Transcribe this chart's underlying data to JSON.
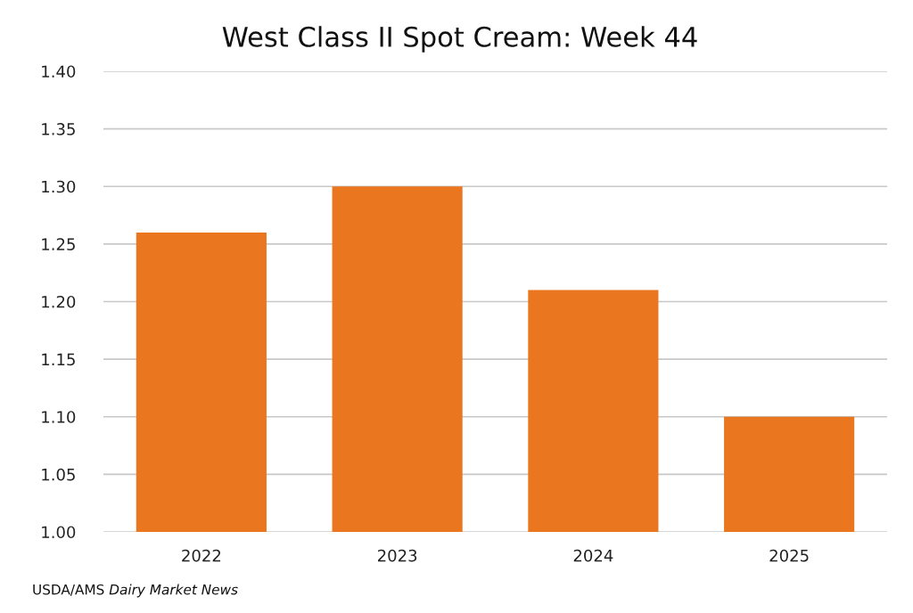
{
  "chart_data": {
    "type": "bar",
    "title": "West Class II Spot Cream: Week 44",
    "categories": [
      "2022",
      "2023",
      "2024",
      "2025"
    ],
    "values": [
      1.26,
      1.3,
      1.21,
      1.1
    ],
    "color": "#ea761f",
    "ylim": [
      1.0,
      1.4
    ],
    "yticks": [
      {
        "value": 1.0,
        "label": "1.00"
      },
      {
        "value": 1.05,
        "label": "1.05"
      },
      {
        "value": 1.1,
        "label": "1.10"
      },
      {
        "value": 1.15,
        "label": "1.15"
      },
      {
        "value": 1.2,
        "label": "1.20"
      },
      {
        "value": 1.25,
        "label": "1.25"
      },
      {
        "value": 1.3,
        "label": "1.30"
      },
      {
        "value": 1.35,
        "label": "1.35"
      },
      {
        "value": 1.4,
        "label": "1.40"
      }
    ],
    "grid": "y",
    "annotations": [
      "USDA/AMS",
      "Dairy Market News"
    ]
  }
}
